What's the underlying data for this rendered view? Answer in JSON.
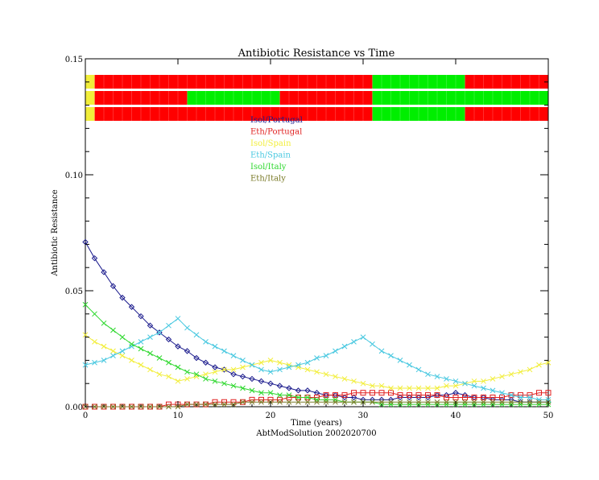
{
  "chart_data": {
    "type": "line",
    "title": "Antibiotic Resistance vs Time",
    "xlabel": "Time (years)",
    "ylabel": "Antibiotic Resistance",
    "caption": "AbtModSolution 2002020700",
    "xlim": [
      0,
      50
    ],
    "ylim": [
      0,
      0.15
    ],
    "xticks": [
      0,
      10,
      20,
      30,
      40,
      50
    ],
    "xtick_labels": [
      "0",
      "10",
      "20",
      "30",
      "40",
      "50"
    ],
    "yticks": [
      0,
      0.05,
      0.1,
      0.15
    ],
    "ytick_labels": [
      "0.00",
      "0.05",
      "0.10",
      "0.15"
    ],
    "legend_position": "top-center",
    "series": [
      {
        "name": "Isol/Portugal",
        "color": "#1a1a8c",
        "marker": "diamond",
        "x": [
          0,
          1,
          2,
          3,
          4,
          5,
          6,
          7,
          8,
          9,
          10,
          11,
          12,
          13,
          14,
          15,
          16,
          17,
          18,
          19,
          20,
          21,
          22,
          23,
          24,
          25,
          26,
          27,
          28,
          29,
          30,
          31,
          32,
          33,
          34,
          35,
          36,
          37,
          38,
          39,
          40,
          41,
          42,
          43,
          44,
          45,
          46,
          47,
          48,
          49,
          50
        ],
        "y": [
          0.071,
          0.064,
          0.058,
          0.052,
          0.047,
          0.043,
          0.039,
          0.035,
          0.032,
          0.029,
          0.026,
          0.024,
          0.021,
          0.019,
          0.017,
          0.016,
          0.014,
          0.013,
          0.012,
          0.011,
          0.01,
          0.009,
          0.008,
          0.007,
          0.007,
          0.006,
          0.005,
          0.005,
          0.004,
          0.004,
          0.003,
          0.003,
          0.003,
          0.003,
          0.004,
          0.004,
          0.004,
          0.004,
          0.005,
          0.005,
          0.006,
          0.005,
          0.004,
          0.004,
          0.003,
          0.003,
          0.003,
          0.002,
          0.002,
          0.002,
          0.002
        ]
      },
      {
        "name": "Eth/Portugal",
        "color": "#e02020",
        "marker": "square",
        "x": [
          0,
          1,
          2,
          3,
          4,
          5,
          6,
          7,
          8,
          9,
          10,
          11,
          12,
          13,
          14,
          15,
          16,
          17,
          18,
          19,
          20,
          21,
          22,
          23,
          24,
          25,
          26,
          27,
          28,
          29,
          30,
          31,
          32,
          33,
          34,
          35,
          36,
          37,
          38,
          39,
          40,
          41,
          42,
          43,
          44,
          45,
          46,
          47,
          48,
          49,
          50
        ],
        "y": [
          0.0,
          0.0,
          0.0,
          0.0,
          0.0,
          0.0,
          0.0,
          0.0,
          0.0,
          0.001,
          0.001,
          0.001,
          0.001,
          0.001,
          0.002,
          0.002,
          0.002,
          0.002,
          0.003,
          0.003,
          0.003,
          0.003,
          0.004,
          0.004,
          0.004,
          0.004,
          0.005,
          0.005,
          0.005,
          0.006,
          0.006,
          0.006,
          0.006,
          0.006,
          0.005,
          0.005,
          0.005,
          0.005,
          0.005,
          0.004,
          0.004,
          0.004,
          0.004,
          0.004,
          0.004,
          0.004,
          0.005,
          0.005,
          0.005,
          0.006,
          0.006
        ]
      },
      {
        "name": "Isol/Spain",
        "color": "#f2ee3a",
        "marker": "x",
        "x": [
          0,
          1,
          2,
          3,
          4,
          5,
          6,
          7,
          8,
          9,
          10,
          11,
          12,
          13,
          14,
          15,
          16,
          17,
          18,
          19,
          20,
          21,
          22,
          23,
          24,
          25,
          26,
          27,
          28,
          29,
          30,
          31,
          32,
          33,
          34,
          35,
          36,
          37,
          38,
          39,
          40,
          41,
          42,
          43,
          44,
          45,
          46,
          47,
          48,
          49,
          50
        ],
        "y": [
          0.031,
          0.028,
          0.026,
          0.024,
          0.022,
          0.02,
          0.018,
          0.016,
          0.014,
          0.013,
          0.011,
          0.012,
          0.013,
          0.014,
          0.015,
          0.016,
          0.016,
          0.017,
          0.018,
          0.019,
          0.02,
          0.019,
          0.018,
          0.017,
          0.016,
          0.015,
          0.014,
          0.013,
          0.012,
          0.011,
          0.01,
          0.009,
          0.009,
          0.008,
          0.008,
          0.008,
          0.008,
          0.008,
          0.008,
          0.009,
          0.009,
          0.01,
          0.011,
          0.011,
          0.012,
          0.013,
          0.014,
          0.015,
          0.016,
          0.018,
          0.019
        ]
      },
      {
        "name": "Eth/Spain",
        "color": "#48c8e0",
        "marker": "x",
        "x": [
          0,
          1,
          2,
          3,
          4,
          5,
          6,
          7,
          8,
          9,
          10,
          11,
          12,
          13,
          14,
          15,
          16,
          17,
          18,
          19,
          20,
          21,
          22,
          23,
          24,
          25,
          26,
          27,
          28,
          29,
          30,
          31,
          32,
          33,
          34,
          35,
          36,
          37,
          38,
          39,
          40,
          41,
          42,
          43,
          44,
          45,
          46,
          47,
          48,
          49,
          50
        ],
        "y": [
          0.018,
          0.019,
          0.02,
          0.022,
          0.024,
          0.026,
          0.028,
          0.03,
          0.032,
          0.035,
          0.038,
          0.034,
          0.031,
          0.028,
          0.026,
          0.024,
          0.022,
          0.02,
          0.018,
          0.016,
          0.015,
          0.016,
          0.017,
          0.018,
          0.019,
          0.021,
          0.022,
          0.024,
          0.026,
          0.028,
          0.03,
          0.027,
          0.024,
          0.022,
          0.02,
          0.018,
          0.016,
          0.014,
          0.013,
          0.012,
          0.011,
          0.01,
          0.009,
          0.008,
          0.007,
          0.006,
          0.005,
          0.004,
          0.004,
          0.003,
          0.003
        ]
      },
      {
        "name": "Isol/Italy",
        "color": "#2ed82e",
        "marker": "x",
        "x": [
          0,
          1,
          2,
          3,
          4,
          5,
          6,
          7,
          8,
          9,
          10,
          11,
          12,
          13,
          14,
          15,
          16,
          17,
          18,
          19,
          20,
          21,
          22,
          23,
          24,
          25,
          26,
          27,
          28,
          29,
          30,
          31,
          32,
          33,
          34,
          35,
          36,
          37,
          38,
          39,
          40,
          41,
          42,
          43,
          44,
          45,
          46,
          47,
          48,
          49,
          50
        ],
        "y": [
          0.044,
          0.04,
          0.036,
          0.033,
          0.03,
          0.027,
          0.025,
          0.023,
          0.021,
          0.019,
          0.017,
          0.015,
          0.014,
          0.012,
          0.011,
          0.01,
          0.009,
          0.008,
          0.007,
          0.006,
          0.006,
          0.005,
          0.005,
          0.004,
          0.004,
          0.003,
          0.003,
          0.003,
          0.002,
          0.002,
          0.002,
          0.002,
          0.001,
          0.001,
          0.001,
          0.001,
          0.001,
          0.001,
          0.001,
          0.001,
          0.001,
          0.001,
          0.001,
          0.001,
          0.001,
          0.001,
          0.001,
          0.001,
          0.001,
          0.001,
          0.001
        ]
      },
      {
        "name": "Eth/Italy",
        "color": "#7a7a28",
        "marker": "x",
        "x": [
          0,
          1,
          2,
          3,
          4,
          5,
          6,
          7,
          8,
          9,
          10,
          11,
          12,
          13,
          14,
          15,
          16,
          17,
          18,
          19,
          20,
          21,
          22,
          23,
          24,
          25,
          26,
          27,
          28,
          29,
          30,
          31,
          32,
          33,
          34,
          35,
          36,
          37,
          38,
          39,
          40,
          41,
          42,
          43,
          44,
          45,
          46,
          47,
          48,
          49,
          50
        ],
        "y": [
          0.0,
          0.0,
          0.0,
          0.0,
          0.0,
          0.0,
          0.0,
          0.0,
          0.0,
          0.0,
          0.0,
          0.001,
          0.001,
          0.001,
          0.001,
          0.001,
          0.001,
          0.002,
          0.002,
          0.002,
          0.002,
          0.002,
          0.002,
          0.002,
          0.002,
          0.002,
          0.002,
          0.002,
          0.002,
          0.002,
          0.002,
          0.002,
          0.002,
          0.002,
          0.002,
          0.002,
          0.002,
          0.002,
          0.002,
          0.002,
          0.002,
          0.002,
          0.002,
          0.002,
          0.002,
          0.002,
          0.002,
          0.002,
          0.002,
          0.002,
          0.002
        ]
      }
    ],
    "treatment_bars": {
      "description": "Three horizontal status bars across the top of the plot (time 0–50), colored per segment",
      "rows": [
        {
          "segments": [
            {
              "from": 0,
              "to": 1,
              "color": "#f2ee3a"
            },
            {
              "from": 1,
              "to": 31,
              "color": "#ff0000"
            },
            {
              "from": 31,
              "to": 41,
              "color": "#00ee00"
            },
            {
              "from": 41,
              "to": 50,
              "color": "#ff0000"
            }
          ]
        },
        {
          "segments": [
            {
              "from": 0,
              "to": 1,
              "color": "#f2ee3a"
            },
            {
              "from": 1,
              "to": 11,
              "color": "#ff0000"
            },
            {
              "from": 11,
              "to": 21,
              "color": "#00ee00"
            },
            {
              "from": 21,
              "to": 31,
              "color": "#ff0000"
            },
            {
              "from": 31,
              "to": 50,
              "color": "#00ee00"
            }
          ]
        },
        {
          "segments": [
            {
              "from": 0,
              "to": 1,
              "color": "#f2ee3a"
            },
            {
              "from": 1,
              "to": 31,
              "color": "#ff0000"
            },
            {
              "from": 31,
              "to": 41,
              "color": "#00ee00"
            },
            {
              "from": 41,
              "to": 50,
              "color": "#ff0000"
            }
          ]
        }
      ]
    }
  }
}
